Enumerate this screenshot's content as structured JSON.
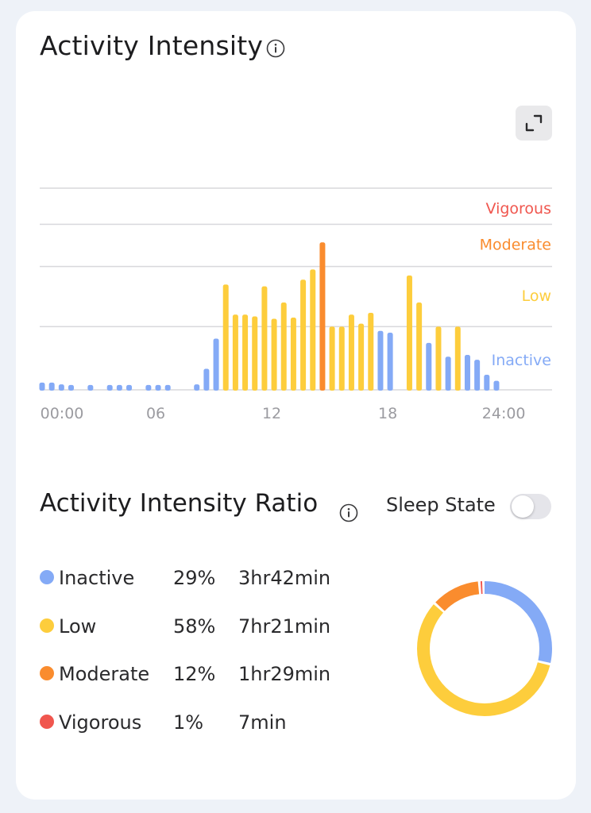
{
  "header": {
    "title": "Activity Intensity"
  },
  "chart_data": {
    "type": "bar",
    "x": [
      0,
      0.5,
      1,
      1.5,
      2.5,
      3.5,
      4,
      4.5,
      5.5,
      6,
      6.5,
      8,
      8.5,
      9,
      9.5,
      10,
      10.5,
      11,
      11.5,
      12,
      12.5,
      13,
      13.5,
      14,
      14.5,
      15,
      15.5,
      16,
      16.5,
      17,
      17.5,
      18,
      19,
      19.5,
      20,
      20.5,
      21,
      21.5,
      22,
      22.5,
      23,
      23.5
    ],
    "values": [
      0.12,
      0.12,
      0.09,
      0.08,
      0.08,
      0.08,
      0.08,
      0.08,
      0.08,
      0.08,
      0.08,
      0.09,
      0.35,
      0.85,
      1.75,
      1.25,
      1.25,
      1.22,
      1.72,
      1.18,
      1.45,
      1.2,
      1.83,
      2.0,
      2.45,
      1.05,
      1.05,
      1.25,
      1.1,
      1.28,
      0.98,
      0.95,
      1.9,
      1.45,
      0.78,
      1.05,
      0.55,
      1.05,
      0.58,
      0.5,
      0.25,
      0.15
    ],
    "levels": [
      "inactive",
      "inactive",
      "inactive",
      "inactive",
      "inactive",
      "inactive",
      "inactive",
      "inactive",
      "inactive",
      "inactive",
      "inactive",
      "inactive",
      "inactive",
      "inactive",
      "low",
      "low",
      "low",
      "low",
      "low",
      "low",
      "low",
      "low",
      "low",
      "low",
      "moderate",
      "low",
      "low",
      "low",
      "low",
      "low",
      "inactive",
      "inactive",
      "low",
      "low",
      "inactive",
      "low",
      "inactive",
      "low",
      "inactive",
      "inactive",
      "inactive",
      "inactive"
    ],
    "ylim": [
      0,
      3.35
    ],
    "grid_levels": [
      1.05,
      2.05,
      2.75,
      3.35
    ],
    "xticks": [
      0,
      6,
      12,
      18,
      24
    ],
    "xtick_labels": [
      "00:00",
      "06",
      "12",
      "18",
      "24:00"
    ],
    "xlim": [
      0,
      26.5
    ],
    "level_labels": [
      {
        "text": "Vigorous",
        "level": "vigorous",
        "y": 3.0
      },
      {
        "text": "Moderate",
        "level": "moderate",
        "y": 2.4
      },
      {
        "text": "Low",
        "level": "low",
        "y": 1.55
      },
      {
        "text": "Inactive",
        "level": "inactive",
        "y": 0.48
      }
    ],
    "colors": {
      "inactive": "#84aaf6",
      "low": "#fdcd3c",
      "moderate": "#fa8c2e",
      "vigorous": "#f0564e",
      "grid": "#d8d8dc",
      "axis_text": "#9b9ba0"
    }
  },
  "ratio": {
    "title": "Activity Intensity Ratio",
    "sleep_label": "Sleep State",
    "sleep_on": false,
    "rows": [
      {
        "name": "Inactive",
        "pct": "29%",
        "dur": "3hr42min",
        "color": "#84aaf6",
        "value": 29
      },
      {
        "name": "Low",
        "pct": "58%",
        "dur": "7hr21min",
        "color": "#fdcd3c",
        "value": 58
      },
      {
        "name": "Moderate",
        "pct": "12%",
        "dur": "1hr29min",
        "color": "#fa8c2e",
        "value": 12
      },
      {
        "name": "Vigorous",
        "pct": "1%",
        "dur": "7min",
        "color": "#f0564e",
        "value": 1
      }
    ]
  }
}
